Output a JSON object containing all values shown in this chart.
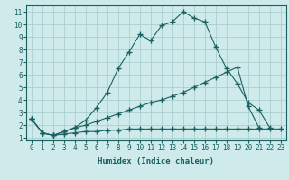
{
  "xlabel": "Humidex (Indice chaleur)",
  "background_color": "#ceeaea",
  "grid_color": "#aacece",
  "line_color": "#1a6060",
  "xlim": [
    -0.5,
    23.5
  ],
  "ylim": [
    0.8,
    11.5
  ],
  "xticks": [
    0,
    1,
    2,
    3,
    4,
    5,
    6,
    7,
    8,
    9,
    10,
    11,
    12,
    13,
    14,
    15,
    16,
    17,
    18,
    19,
    20,
    21,
    22,
    23
  ],
  "yticks": [
    1,
    2,
    3,
    4,
    5,
    6,
    7,
    8,
    9,
    10,
    11
  ],
  "line1_x": [
    0,
    1,
    2,
    3,
    4,
    5,
    6,
    7,
    8,
    9,
    10,
    11,
    12,
    13,
    14,
    15,
    16,
    17,
    18,
    19,
    20,
    21,
    22
  ],
  "line1_y": [
    2.5,
    1.4,
    1.2,
    1.5,
    1.8,
    2.4,
    3.4,
    4.6,
    6.5,
    7.8,
    9.2,
    8.7,
    9.9,
    10.2,
    11.0,
    10.5,
    10.2,
    8.2,
    6.5,
    5.3,
    3.8,
    3.2,
    1.8
  ],
  "line2_x": [
    0,
    1,
    2,
    3,
    4,
    5,
    6,
    7,
    8,
    9,
    10,
    11,
    12,
    13,
    14,
    15,
    16,
    17,
    18,
    19,
    20,
    21
  ],
  "line2_y": [
    2.5,
    1.4,
    1.2,
    1.5,
    1.8,
    2.0,
    2.3,
    2.6,
    2.9,
    3.2,
    3.5,
    3.8,
    4.0,
    4.3,
    4.6,
    5.0,
    5.4,
    5.8,
    6.2,
    6.6,
    3.5,
    1.8
  ],
  "line3_x": [
    0,
    1,
    2,
    3,
    4,
    5,
    6,
    7,
    8,
    9,
    10,
    11,
    12,
    13,
    14,
    15,
    16,
    17,
    18,
    19,
    20,
    21,
    22,
    23
  ],
  "line3_y": [
    2.5,
    1.4,
    1.2,
    1.3,
    1.4,
    1.5,
    1.5,
    1.6,
    1.6,
    1.7,
    1.7,
    1.7,
    1.7,
    1.7,
    1.7,
    1.7,
    1.7,
    1.7,
    1.7,
    1.7,
    1.7,
    1.7,
    1.7,
    1.7
  ]
}
